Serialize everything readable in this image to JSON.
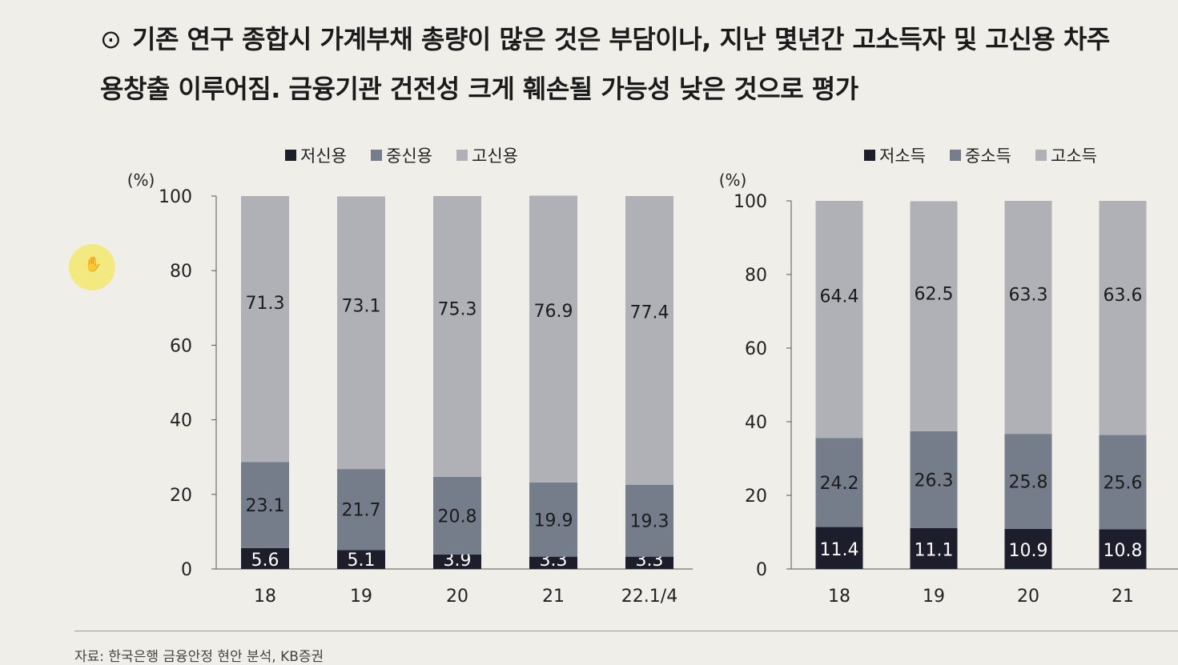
{
  "headline": {
    "bullet": "⊙",
    "line1": "기존 연구 종합시 가계부채 총량이 많은 것은 부담이나, 지난 몇년간 고소득자 및 고신용 차주",
    "line2": "용창출 이루어짐. 금융기관 건전성 크게 훼손될 가능성 낮은 것으로 평가"
  },
  "source": "자료: 한국은행 금융안정 현안 분석, KB증권",
  "colors": {
    "low": "#1c1f2b",
    "mid": "#747d89",
    "high": "#b0b1b6",
    "axis": "#444444"
  },
  "chart_data": [
    {
      "type": "bar",
      "stacked": true,
      "unit_label": "(%)",
      "ylim": [
        0,
        100
      ],
      "yticks": [
        0,
        20,
        40,
        60,
        80,
        100
      ],
      "categories": [
        "18",
        "19",
        "20",
        "21",
        "22.1/4"
      ],
      "series": [
        {
          "name": "저신용",
          "color": "#1c1f2b",
          "values": [
            5.6,
            5.1,
            3.9,
            3.3,
            3.3
          ]
        },
        {
          "name": "중신용",
          "color": "#747d89",
          "values": [
            23.1,
            21.7,
            20.8,
            19.9,
            19.3
          ]
        },
        {
          "name": "고신용",
          "color": "#b0b1b6",
          "values": [
            71.3,
            73.1,
            75.3,
            76.9,
            77.4
          ]
        }
      ],
      "legend": "top"
    },
    {
      "type": "bar",
      "stacked": true,
      "unit_label": "(%)",
      "ylim": [
        0,
        100
      ],
      "yticks": [
        0,
        20,
        40,
        60,
        80,
        100
      ],
      "categories": [
        "18",
        "19",
        "20",
        "21"
      ],
      "series": [
        {
          "name": "저소득",
          "color": "#1c1f2b",
          "values": [
            11.4,
            11.1,
            10.9,
            10.8
          ]
        },
        {
          "name": "중소득",
          "color": "#747d89",
          "values": [
            24.2,
            26.3,
            25.8,
            25.6
          ]
        },
        {
          "name": "고소득",
          "color": "#b0b1b6",
          "values": [
            64.4,
            62.5,
            63.3,
            63.6
          ]
        }
      ],
      "legend": "top"
    }
  ]
}
